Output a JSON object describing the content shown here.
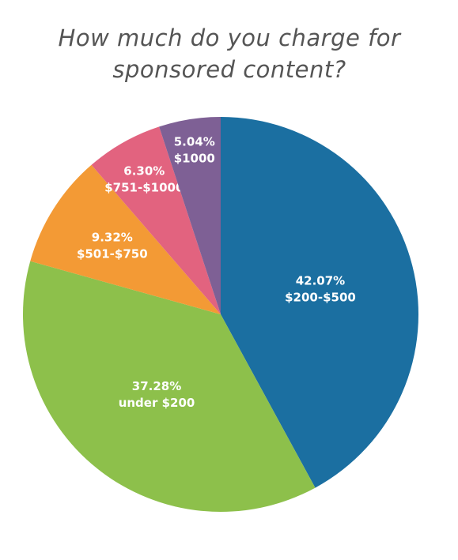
{
  "chart_data": {
    "type": "pie",
    "title": "How much do you charge for sponsored content?",
    "categories": [
      "$200-$500",
      "under $200",
      "$501-$750",
      "$751-$1000",
      "$1000"
    ],
    "values": [
      42.07,
      37.28,
      9.32,
      6.3,
      5.04
    ],
    "value_labels": [
      "42.07%",
      "37.28%",
      "9.32%",
      "6.30%",
      "5.04%"
    ],
    "colors": [
      "#1b6fa1",
      "#8dc04b",
      "#f39a35",
      "#e2637f",
      "#7e6095"
    ]
  }
}
